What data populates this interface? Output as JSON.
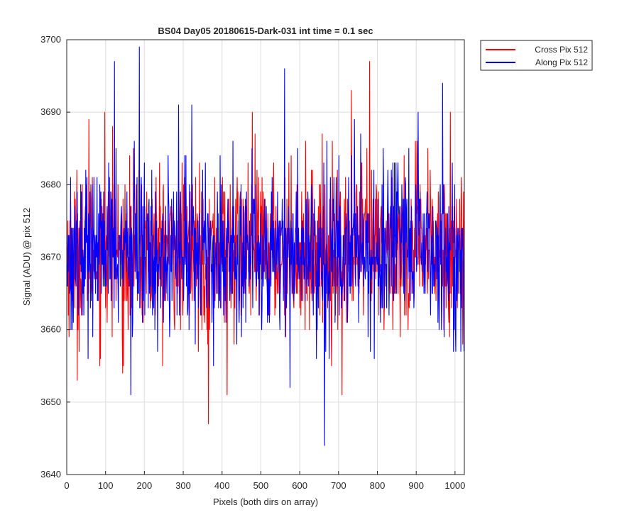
{
  "figure": {
    "background": "#ffffff"
  },
  "chart_data": {
    "type": "line",
    "title": "BS04 Day05 20180615-Dark-031 int time = 0.1 sec",
    "xlabel": "Pixels (both dirs on array)",
    "ylabel": "Signal (ADU) @ pix 512",
    "xlim": [
      0,
      1024
    ],
    "ylim": [
      3640,
      3700
    ],
    "xticks": [
      0,
      100,
      200,
      300,
      400,
      500,
      600,
      700,
      800,
      900,
      1000
    ],
    "yticks": [
      3640,
      3650,
      3660,
      3670,
      3680,
      3690,
      3700
    ],
    "grid": true,
    "legend_position": "outside top-right",
    "noise_model": {
      "points": 1024,
      "mean": 3671,
      "std": 5.5,
      "note_visual": "dense dark-frame noise, values mostly between 3655 and 3688"
    },
    "series": [
      {
        "name": "Cross Pix 512",
        "color": "#ff0000",
        "mean": 3671,
        "spikes": [
          {
            "x": 20,
            "y": 3679
          },
          {
            "x": 27,
            "y": 3653
          },
          {
            "x": 57,
            "y": 3689
          },
          {
            "x": 98,
            "y": 3690
          },
          {
            "x": 118,
            "y": 3688
          },
          {
            "x": 144,
            "y": 3654
          },
          {
            "x": 365,
            "y": 3647
          },
          {
            "x": 413,
            "y": 3651
          },
          {
            "x": 478,
            "y": 3690
          },
          {
            "x": 709,
            "y": 3651
          },
          {
            "x": 733,
            "y": 3693
          },
          {
            "x": 780,
            "y": 3697
          },
          {
            "x": 988,
            "y": 3690
          },
          {
            "x": 1020,
            "y": 3658
          }
        ]
      },
      {
        "name": "Along Pix 512",
        "color": "#0000ff",
        "mean": 3671,
        "spikes": [
          {
            "x": 123,
            "y": 3697
          },
          {
            "x": 165,
            "y": 3651
          },
          {
            "x": 187,
            "y": 3699
          },
          {
            "x": 288,
            "y": 3691
          },
          {
            "x": 322,
            "y": 3691
          },
          {
            "x": 561,
            "y": 3696
          },
          {
            "x": 575,
            "y": 3652
          },
          {
            "x": 664,
            "y": 3644
          },
          {
            "x": 741,
            "y": 3689
          },
          {
            "x": 782,
            "y": 3657
          },
          {
            "x": 905,
            "y": 3690
          },
          {
            "x": 968,
            "y": 3694
          },
          {
            "x": 1002,
            "y": 3657
          }
        ]
      }
    ]
  }
}
